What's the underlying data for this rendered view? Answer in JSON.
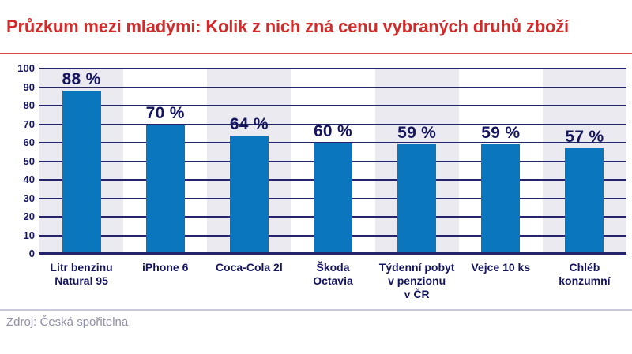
{
  "header": {
    "title": "Průzkum mezi mladými: Kolik z nich zná cenu vybraných druhů zboží"
  },
  "footer": {
    "source": "Zdroj: Česká spořitelna"
  },
  "colors": {
    "title_red": "#d32b2b",
    "rule_red": "#d64949",
    "bar_blue": "#0a76be",
    "navy_text": "#14145f",
    "gridline_navy": "#23246b",
    "band_gray": "#eaeaf0",
    "footer_text": "#8f8fa8",
    "footer_rule": "#c9c9dc"
  },
  "chart_data": {
    "type": "bar",
    "title": "Průzkum mezi mladými: Kolik z nich zná cenu vybraných druhů zboží",
    "categories": [
      "Litr benzinu Natural 95",
      "iPhone 6",
      "Coca-Cola 2l",
      "Škoda Octavia",
      "Týdenní pobyt v penzionu v ČR",
      "Vejce 10 ks",
      "Chléb konzumní"
    ],
    "category_lines": [
      [
        "Litr benzinu",
        "Natural 95"
      ],
      [
        "iPhone 6"
      ],
      [
        "Coca-Cola 2l"
      ],
      [
        "Škoda",
        "Octavia"
      ],
      [
        "Týdenní pobyt",
        "v penzionu",
        "v ČR"
      ],
      [
        "Vejce 10 ks"
      ],
      [
        "Chléb",
        "konzumní"
      ]
    ],
    "values": [
      88,
      70,
      64,
      60,
      59,
      59,
      57
    ],
    "value_labels": [
      "88 %",
      "70 %",
      "64 %",
      "60 %",
      "59 %",
      "59 %",
      "57 %"
    ],
    "xlabel": "",
    "ylabel": "",
    "ylim": [
      0,
      100
    ],
    "yticks": [
      0,
      10,
      20,
      30,
      40,
      50,
      60,
      70,
      80,
      90,
      100
    ],
    "grid": true,
    "legend": false,
    "column_bands": "alternating gray bands behind odd categories (1st, 3rd, 5th, 7th)"
  }
}
